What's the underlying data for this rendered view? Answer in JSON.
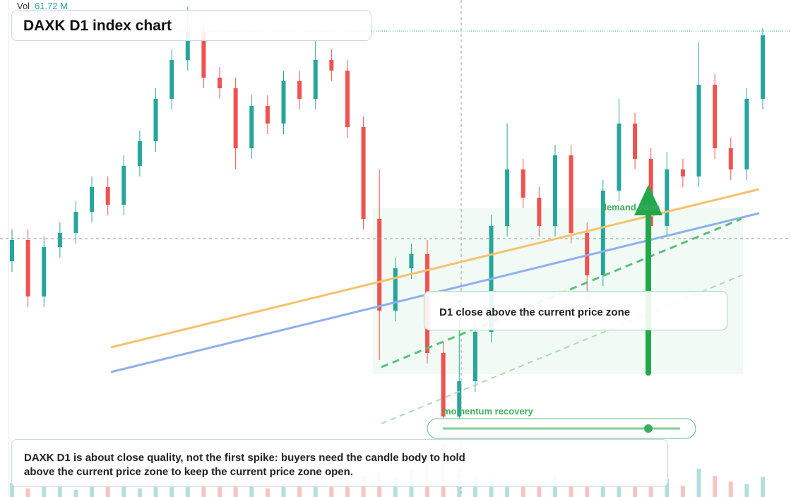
{
  "chart_data": {
    "type": "candlestick",
    "title": "DAXK D1 index chart",
    "volume_label": "Vol",
    "volume_value": "61.72 M",
    "ylim": [
      0,
      704
    ],
    "vlim": [
      0,
      140
    ],
    "up_color": "#26a69a",
    "down_color": "#ef5350",
    "open": [
      334,
      364,
      284,
      354,
      374,
      404,
      439,
      414,
      469,
      504,
      564,
      619,
      659,
      594,
      579,
      494,
      554,
      529,
      589,
      564,
      619,
      604,
      524,
      394,
      264,
      324,
      344,
      204,
      114,
      164,
      234,
      384,
      464,
      424,
      384,
      484,
      374,
      314,
      434,
      529,
      479,
      384,
      464,
      454,
      584,
      494,
      464,
      564
    ],
    "high": [
      379,
      379,
      369,
      389,
      419,
      454,
      454,
      484,
      519,
      579,
      634,
      694,
      674,
      609,
      594,
      569,
      569,
      604,
      604,
      649,
      634,
      619,
      539,
      464,
      339,
      359,
      364,
      219,
      279,
      249,
      399,
      529,
      479,
      439,
      499,
      499,
      389,
      449,
      564,
      544,
      494,
      489,
      479,
      644,
      599,
      509,
      579,
      664
    ],
    "low": [
      319,
      269,
      269,
      339,
      359,
      389,
      399,
      399,
      454,
      489,
      549,
      604,
      579,
      564,
      464,
      479,
      514,
      514,
      549,
      549,
      589,
      509,
      379,
      194,
      249,
      309,
      189,
      84,
      99,
      149,
      219,
      369,
      409,
      369,
      369,
      359,
      279,
      299,
      419,
      464,
      369,
      369,
      439,
      439,
      479,
      449,
      449,
      549
    ],
    "close": [
      364,
      284,
      354,
      374,
      404,
      439,
      414,
      469,
      504,
      564,
      619,
      659,
      594,
      579,
      494,
      554,
      529,
      589,
      564,
      619,
      604,
      524,
      394,
      264,
      324,
      344,
      204,
      114,
      164,
      234,
      384,
      464,
      424,
      384,
      484,
      374,
      314,
      434,
      529,
      479,
      384,
      464,
      454,
      584,
      494,
      464,
      564,
      654
    ],
    "volume": [
      20,
      12,
      15,
      18,
      10,
      14,
      22,
      16,
      12,
      18,
      25,
      30,
      20,
      16,
      22,
      14,
      12,
      18,
      15,
      20,
      16,
      24,
      30,
      35,
      28,
      40,
      60,
      75,
      45,
      30,
      26,
      22,
      18,
      20,
      30,
      16,
      14,
      24,
      20,
      18,
      22,
      26,
      16,
      40,
      30,
      22,
      18,
      28
    ],
    "annotations": {
      "zone": "demand zone",
      "callout": "D1 close above the current price zone",
      "momentum": "momentum recovery",
      "note": "DAXK D1 is about close quality, not the first spike: buyers need the candle body to hold above the current price zone to keep the current price zone open."
    }
  }
}
